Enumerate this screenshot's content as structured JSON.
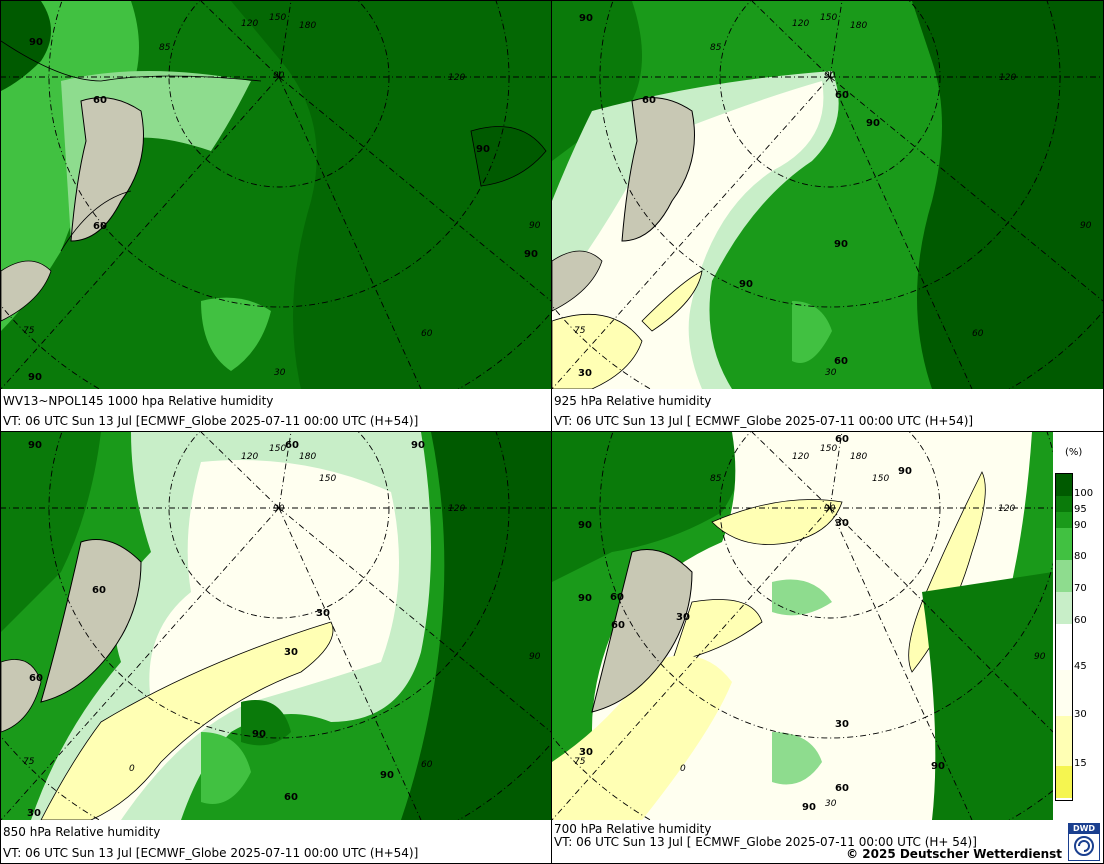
{
  "colors": {
    "rh_100": "#005a00",
    "rh_95": "#0a7a0a",
    "rh_90": "#1a9a1a",
    "rh_80": "#41c141",
    "rh_70": "#8edc8e",
    "rh_60": "#c8eec8",
    "rh_45": "#fffff0",
    "rh_30": "#ffffb4",
    "rh_15": "#f5f550",
    "land": "#c8c8b4"
  },
  "panels": [
    {
      "title": "WV13~NPOL145 1000 hpa Relative humidity",
      "valid": "VT: 06 UTC Sun  13 Jul [ECMWF_Globe 2025-07-11 00:00 UTC  (H+54)]",
      "contour_labels": [
        "90",
        "60",
        "60",
        "90",
        "90",
        "90"
      ],
      "graticule_labels": [
        "120",
        "150",
        "180",
        "85",
        "90",
        "120",
        "90",
        "75",
        "60",
        "30"
      ]
    },
    {
      "title": "925 hPa Relative humidity",
      "valid": "VT: 06 UTC Sun  13 Jul [ ECMWF_Globe 2025-07-11 00:00 UTC  (H+54)]",
      "contour_labels": [
        "90",
        "60",
        "90",
        "60",
        "90",
        "90",
        "60",
        "30"
      ],
      "graticule_labels": [
        "120",
        "150",
        "180",
        "85",
        "90",
        "120",
        "90",
        "75",
        "60",
        "30"
      ]
    },
    {
      "title": "850 hPa  Relative humidity",
      "valid": "VT: 06 UTC Sun  13 Jul [ECMWF_Globe 2025-07-11 00:00 UTC (H+54)]",
      "contour_labels": [
        "60",
        "90",
        "90",
        "60",
        "60",
        "30",
        "30",
        "90",
        "90",
        "60",
        "30"
      ],
      "graticule_labels": [
        "120",
        "150",
        "180",
        "150",
        "90",
        "120",
        "90",
        "75",
        "60",
        "0"
      ]
    },
    {
      "title": "700 hPa Relative humidity",
      "valid": "VT: 06 UTC Sun  13 Jul [ ECMWF_Globe 2025-07-11 00:00 UTC  (H+ 54)]",
      "contour_labels": [
        "60",
        "90",
        "90",
        "60",
        "30",
        "90",
        "60",
        "30",
        "30",
        "30",
        "90",
        "60",
        "90"
      ],
      "graticule_labels": [
        "120",
        "150",
        "180",
        "150",
        "85",
        "90",
        "120",
        "90",
        "75",
        "0",
        "30"
      ]
    }
  ],
  "legend": {
    "unit": "(%)",
    "ticks": [
      "100",
      "95",
      "90",
      "80",
      "70",
      "60",
      "45",
      "30",
      "15"
    ]
  },
  "footer": {
    "copyright": "© 2025 Deutscher Wetterdienst",
    "logo_text": "DWD"
  }
}
